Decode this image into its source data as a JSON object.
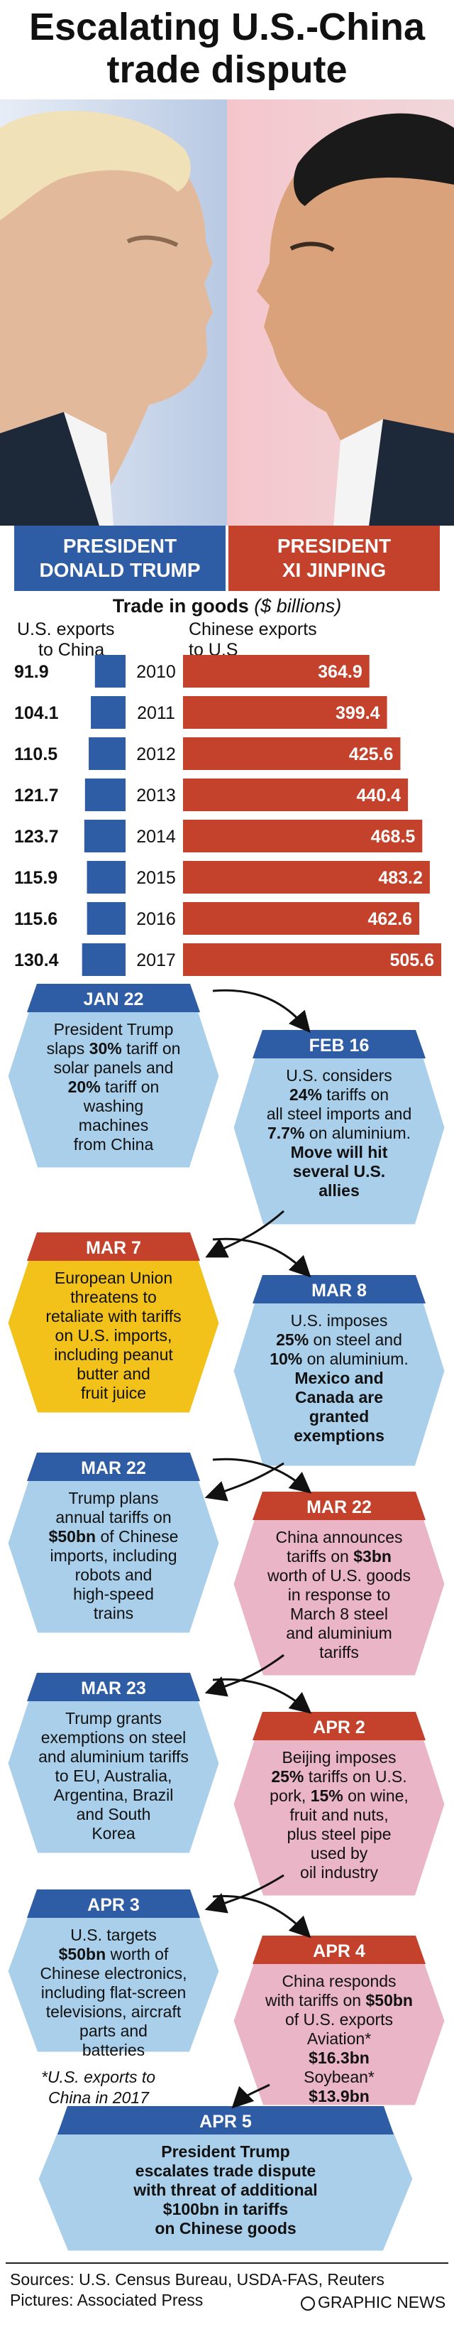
{
  "title": "Escalating U.S.-China trade dispute",
  "title_lines": [
    "Escalating U.S.-China",
    "trade dispute"
  ],
  "left_person": {
    "line1": "PRESIDENT",
    "line2": "DONALD TRUMP"
  },
  "right_person": {
    "line1": "PRESIDENT",
    "line2": "XI JINPING"
  },
  "chart_title_bold": "Trade in goods",
  "chart_title_italic": "($ billions)",
  "left_col_head": [
    "U.S. exports",
    "to China"
  ],
  "right_col_head": [
    "Chinese exports",
    "to U.S"
  ],
  "colors": {
    "us_blue": "#2e5da6",
    "china_red": "#c4422b",
    "hex_blue": "#a9cfea",
    "hex_pink": "#eab5c6",
    "hex_yellow": "#f2c21b"
  },
  "chart_data": {
    "type": "bar",
    "title": "Trade in goods ($ billions)",
    "categories": [
      "2010",
      "2011",
      "2012",
      "2013",
      "2014",
      "2015",
      "2016",
      "2017"
    ],
    "series": [
      {
        "name": "U.S. exports to China",
        "values": [
          91.9,
          104.1,
          110.5,
          121.7,
          123.7,
          115.9,
          115.6,
          130.4
        ]
      },
      {
        "name": "Chinese exports to U.S",
        "values": [
          364.9,
          399.4,
          425.6,
          440.4,
          468.5,
          483.2,
          462.6,
          505.6
        ]
      }
    ],
    "value_labels_left": [
      "91.9",
      "104.1",
      "110.5",
      "121.7",
      "123.7",
      "115.9",
      "115.6",
      "130.4"
    ],
    "value_labels_right": [
      "364.9",
      "399.4",
      "425.6",
      "440.4",
      "468.5",
      "483.2",
      "462.6",
      "505.6"
    ],
    "grid": false
  },
  "timeline": [
    {
      "date": "JAN 22",
      "color": "blue",
      "lines": [
        "President Trump",
        "slaps 30% tariff on",
        "solar panels and",
        "20% tariff on",
        "washing",
        "machines",
        "from China"
      ]
    },
    {
      "date": "FEB 16",
      "color": "blue",
      "lines": [
        "U.S. considers",
        "24% tariffs on",
        "all steel imports and",
        "7.7% on aluminium.",
        "Move will hit",
        "several U.S.",
        "allies"
      ]
    },
    {
      "date": "MAR 7",
      "color": "yellow",
      "lines": [
        "European Union",
        "threatens to",
        "retaliate with tariffs",
        "on U.S. imports,",
        "including peanut",
        "butter and",
        "fruit juice"
      ]
    },
    {
      "date": "MAR 8",
      "color": "blue",
      "lines": [
        "U.S. imposes",
        "25% on steel and",
        "10% on aluminium.",
        "Mexico and",
        "Canada are",
        "granted",
        "exemptions"
      ]
    },
    {
      "date": "MAR 22",
      "color": "blue",
      "lines": [
        "Trump plans",
        "annual tariffs on",
        "$50bn of Chinese",
        "imports, including",
        "robots and",
        "high-speed",
        "trains"
      ]
    },
    {
      "date": "MAR 22",
      "color": "pink",
      "lines": [
        "China announces",
        "tariffs on $3bn",
        "worth of U.S. goods",
        "in response to",
        "March 8 steel",
        "and aluminium",
        "tariffs"
      ]
    },
    {
      "date": "MAR 23",
      "color": "blue",
      "lines": [
        "Trump grants",
        "exemptions on steel",
        "and aluminium tariffs",
        "to EU, Australia,",
        "Argentina, Brazil",
        "and South",
        "Korea"
      ]
    },
    {
      "date": "APR 2",
      "color": "pink",
      "lines": [
        "Beijing imposes",
        "25% tariffs on U.S.",
        "pork, 15% on wine,",
        "fruit and nuts,",
        "plus steel pipe",
        "used by",
        "oil industry"
      ]
    },
    {
      "date": "APR 3",
      "color": "blue",
      "lines": [
        "U.S. targets",
        "$50bn worth of",
        "Chinese electronics,",
        "including flat-screen",
        "televisions, aircraft",
        "parts and",
        "batteries"
      ]
    },
    {
      "date": "APR 4",
      "color": "pink",
      "lines": [
        "China responds",
        "with tariffs on $50bn",
        "of U.S. exports",
        "Aviation*",
        "$16.3bn",
        "Soybean*",
        "$13.9bn"
      ]
    },
    {
      "date": "APR 5",
      "color": "blue",
      "lines": [
        "President Trump",
        "escalates trade dispute",
        "with threat of additional",
        "$100bn in tariffs",
        "on Chinese goods"
      ]
    }
  ],
  "footnote": [
    "*U.S. exports to",
    "China in 2017"
  ],
  "sources": [
    "Sources: U.S. Census Bureau, USDA-FAS, Reuters",
    "Pictures: Associated Press"
  ],
  "credit": "GRAPHIC NEWS"
}
